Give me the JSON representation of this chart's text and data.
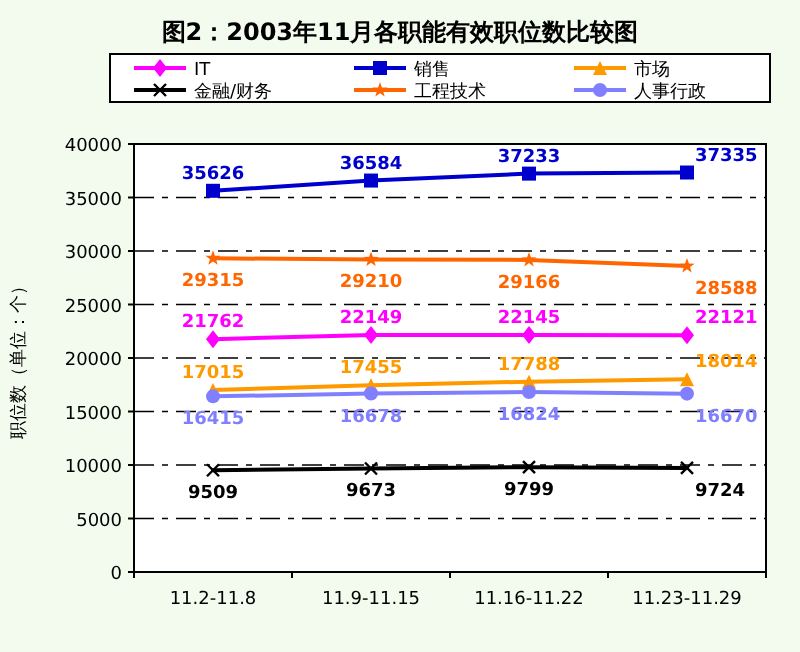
{
  "chart_data": {
    "type": "line",
    "title": "图2：2003年11月各职能有效职位数比较图",
    "ylabel": "职位数（单位：个）",
    "categories": [
      "11.2-11.8",
      "11.9-11.15",
      "11.16-11.22",
      "11.23-11.29"
    ],
    "series": [
      {
        "name": "IT",
        "color": "#ff00ff",
        "marker": "diamond",
        "values": [
          21762,
          22149,
          22145,
          22121
        ]
      },
      {
        "name": "销售",
        "color": "#0000cc",
        "marker": "square",
        "values": [
          35626,
          36584,
          37233,
          37335
        ]
      },
      {
        "name": "市场",
        "color": "#ff9900",
        "marker": "triangle",
        "values": [
          17015,
          17455,
          17788,
          18014
        ]
      },
      {
        "name": "金融/财务",
        "color": "#000000",
        "marker": "cross",
        "values": [
          9509,
          9673,
          9799,
          9724
        ]
      },
      {
        "name": "工程技术",
        "color": "#ff6600",
        "marker": "star",
        "values": [
          29315,
          29210,
          29166,
          28588
        ]
      },
      {
        "name": "人事行政",
        "color": "#8080ff",
        "marker": "circle",
        "values": [
          16415,
          16678,
          16824,
          16670
        ]
      }
    ],
    "ylim": [
      0,
      40000
    ],
    "yticks": [
      0,
      5000,
      10000,
      15000,
      20000,
      25000,
      30000,
      35000,
      40000
    ],
    "grid": "y",
    "legend": "top",
    "data_labels": true,
    "line_style": "solid"
  }
}
